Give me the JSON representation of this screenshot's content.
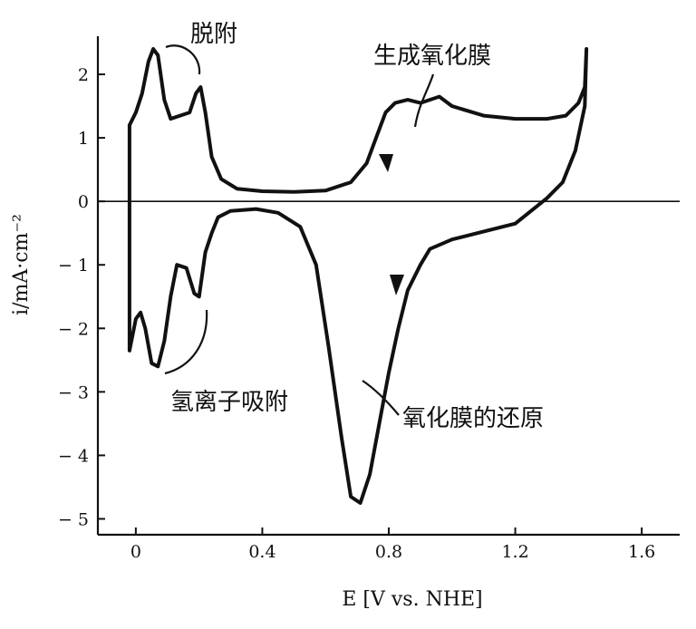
{
  "chart_data": {
    "type": "line",
    "xlabel": "E [V vs. NHE]",
    "ylabel": "i/mA·cm⁻²",
    "xlim": [
      -0.12,
      1.72
    ],
    "ylim": [
      -5.25,
      2.6
    ],
    "x_ticks": [
      0,
      0.4,
      0.8,
      1.2,
      1.6
    ],
    "x_tick_labels": [
      "0",
      "0.4",
      "0.8",
      "1.2",
      "1.6"
    ],
    "y_ticks": [
      2,
      1,
      0,
      -1,
      -2,
      -3,
      -4,
      -5
    ],
    "y_tick_labels": [
      "2",
      "1",
      "0",
      "− 1",
      "− 2",
      "− 3",
      "− 4",
      "− 5"
    ],
    "grid": false,
    "series": [
      {
        "values": [
          [
            -0.02,
            1.2
          ],
          [
            0.0,
            1.4
          ],
          [
            0.02,
            1.7
          ],
          [
            0.04,
            2.2
          ],
          [
            0.055,
            2.4
          ],
          [
            0.07,
            2.3
          ],
          [
            0.09,
            1.6
          ],
          [
            0.11,
            1.3
          ],
          [
            0.14,
            1.35
          ],
          [
            0.17,
            1.4
          ],
          [
            0.19,
            1.7
          ],
          [
            0.205,
            1.8
          ],
          [
            0.22,
            1.4
          ],
          [
            0.24,
            0.7
          ],
          [
            0.27,
            0.35
          ],
          [
            0.32,
            0.2
          ],
          [
            0.4,
            0.16
          ],
          [
            0.5,
            0.15
          ],
          [
            0.6,
            0.17
          ],
          [
            0.68,
            0.3
          ],
          [
            0.73,
            0.6
          ],
          [
            0.76,
            1.0
          ],
          [
            0.79,
            1.4
          ],
          [
            0.82,
            1.55
          ],
          [
            0.86,
            1.6
          ],
          [
            0.9,
            1.55
          ],
          [
            0.96,
            1.65
          ],
          [
            1.0,
            1.5
          ],
          [
            1.1,
            1.35
          ],
          [
            1.2,
            1.3
          ],
          [
            1.3,
            1.3
          ],
          [
            1.36,
            1.35
          ],
          [
            1.4,
            1.55
          ],
          [
            1.42,
            1.8
          ],
          [
            1.425,
            2.4
          ],
          [
            1.42,
            1.5
          ],
          [
            1.39,
            0.8
          ],
          [
            1.35,
            0.3
          ],
          [
            1.3,
            0.05
          ],
          [
            1.2,
            -0.35
          ],
          [
            1.0,
            -0.6
          ],
          [
            0.93,
            -0.75
          ],
          [
            0.9,
            -1.0
          ],
          [
            0.86,
            -1.4
          ],
          [
            0.83,
            -2.0
          ],
          [
            0.8,
            -2.7
          ],
          [
            0.77,
            -3.5
          ],
          [
            0.74,
            -4.3
          ],
          [
            0.71,
            -4.75
          ],
          [
            0.68,
            -4.65
          ],
          [
            0.65,
            -3.7
          ],
          [
            0.61,
            -2.3
          ],
          [
            0.57,
            -1.0
          ],
          [
            0.52,
            -0.4
          ],
          [
            0.45,
            -0.18
          ],
          [
            0.38,
            -0.12
          ],
          [
            0.3,
            -0.15
          ],
          [
            0.26,
            -0.25
          ],
          [
            0.24,
            -0.5
          ],
          [
            0.22,
            -0.8
          ],
          [
            0.2,
            -1.5
          ],
          [
            0.185,
            -1.45
          ],
          [
            0.16,
            -1.05
          ],
          [
            0.13,
            -1.0
          ],
          [
            0.11,
            -1.5
          ],
          [
            0.09,
            -2.2
          ],
          [
            0.07,
            -2.6
          ],
          [
            0.05,
            -2.55
          ],
          [
            0.03,
            -2.0
          ],
          [
            0.015,
            -1.75
          ],
          [
            0.0,
            -1.85
          ],
          [
            -0.01,
            -2.1
          ],
          [
            -0.02,
            -2.35
          ],
          [
            -0.02,
            1.2
          ]
        ]
      }
    ],
    "annotations": [
      {
        "text": "脱附"
      },
      {
        "text": "生成氧化膜"
      },
      {
        "text": "氢离子吸附"
      },
      {
        "text": "氧化膜的还原"
      }
    ]
  }
}
